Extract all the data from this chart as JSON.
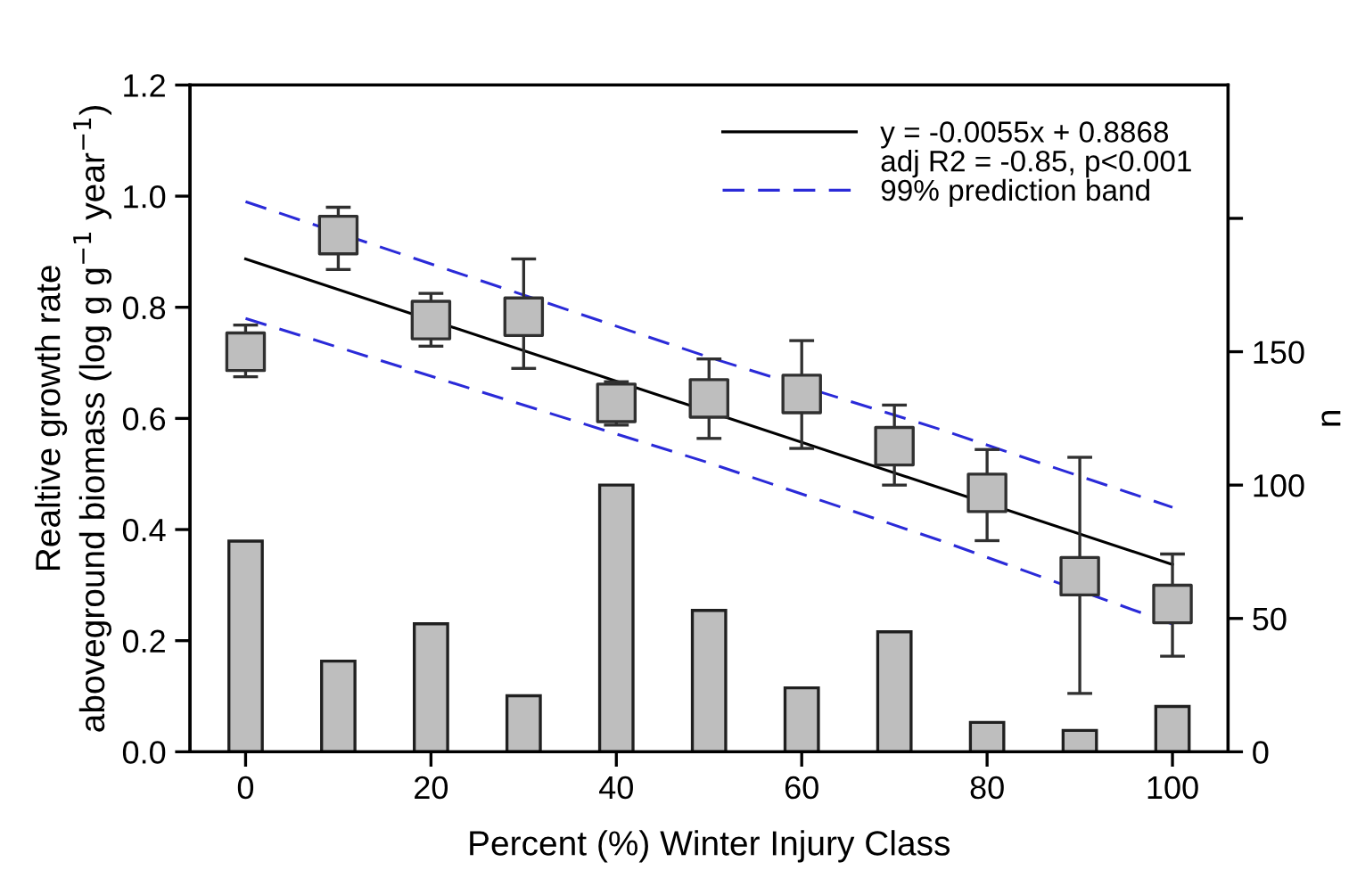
{
  "chart_data": {
    "type": "scatter",
    "xlabel": "Percent (%) Winter Injury Class",
    "ylabel": "Realtive growth rate\naboveground biomass (log g g$^{−1}$ year$^{−1}$)",
    "y2label": "n",
    "x": [
      0,
      10,
      20,
      30,
      40,
      50,
      60,
      70,
      80,
      90,
      100
    ],
    "series": [
      {
        "type": "bar",
        "axis": "y2",
        "color": "#bebebe",
        "values": [
          79,
          34,
          48,
          21,
          100,
          53,
          24,
          45,
          11,
          8,
          17
        ]
      },
      {
        "type": "line",
        "name": "y = -0.0055x + 0.8868",
        "color": "#000000",
        "line_style": "solid",
        "marker": "none",
        "x": [
          0,
          100
        ],
        "values": [
          0.887,
          0.337
        ]
      },
      {
        "type": "line",
        "name": "99% prediction band",
        "color": "#2a2ad8",
        "line_style": "dashed",
        "marker": "none",
        "x": [
          0,
          25,
          50,
          75,
          100
        ],
        "values": [
          0.99,
          0.85,
          0.71,
          0.58,
          0.44
        ]
      },
      {
        "type": "line",
        "color": "#2a2ad8",
        "line_style": "dashed",
        "marker": "none",
        "x": [
          0,
          25,
          50,
          75,
          100
        ],
        "values": [
          0.78,
          0.65,
          0.52,
          0.38,
          0.23
        ]
      },
      {
        "color": "#bebebe",
        "marker": "square",
        "values": [
          0.72,
          0.93,
          0.777,
          0.783,
          0.628,
          0.636,
          0.644,
          0.55,
          0.466,
          0.316,
          0.266
        ],
        "errors": [
          [
            0.675,
            0.768
          ],
          [
            0.868,
            0.98
          ],
          [
            0.73,
            0.825
          ],
          [
            0.69,
            0.887
          ],
          [
            0.588,
            0.666
          ],
          [
            0.564,
            0.707
          ],
          [
            0.546,
            0.74
          ],
          [
            0.48,
            0.624
          ],
          [
            0.38,
            0.544
          ],
          [
            0.105,
            0.53
          ],
          [
            0.172,
            0.356
          ]
        ]
      }
    ],
    "annotations": [
      "adj R2 = -0.85, p<0.001"
    ],
    "xlim": [
      -6,
      106
    ],
    "xticks": [
      0,
      20,
      40,
      60,
      80,
      100
    ],
    "ylim": [
      0,
      1.2
    ],
    "yticks": [
      {
        "value": 0,
        "label": "0.0"
      },
      0.2,
      0.4,
      0.6,
      0.8,
      {
        "value": 1,
        "label": "1.0"
      },
      1.2
    ],
    "y2lim": [
      0,
      250
    ],
    "y2ticks": [
      0,
      50,
      100,
      150,
      {
        "value": 200,
        "label": null
      }
    ],
    "legend": "top right",
    "grid": false
  }
}
